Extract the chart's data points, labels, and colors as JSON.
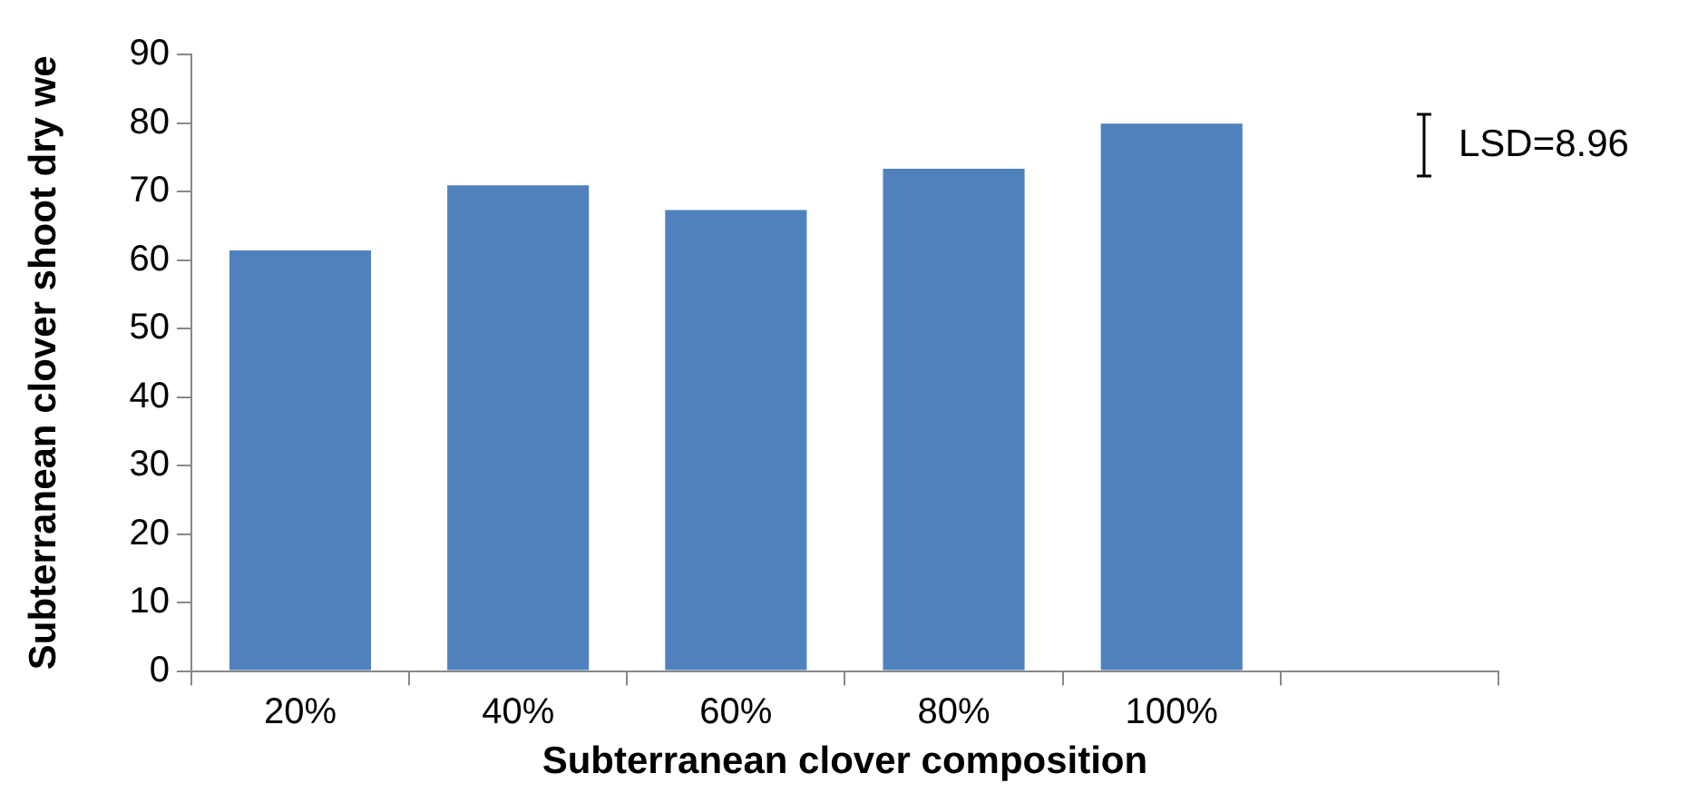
{
  "chart_data": {
    "type": "bar",
    "xlabel": "Subterranean clover composition",
    "ylabel": "Subterranean clover shoot dry we",
    "categories": [
      "20%",
      "40%",
      "60%",
      "80%",
      "100%",
      null
    ],
    "values": [
      61.4,
      70.9,
      67.3,
      73.3,
      79.9,
      null
    ],
    "color": "#4f81bd",
    "ylim": [
      0,
      90
    ],
    "yticks": [
      0,
      10,
      20,
      30,
      40,
      50,
      60,
      70,
      80,
      90
    ],
    "grid": false,
    "legend": false,
    "annotations": [
      "LSD=8.96"
    ]
  }
}
